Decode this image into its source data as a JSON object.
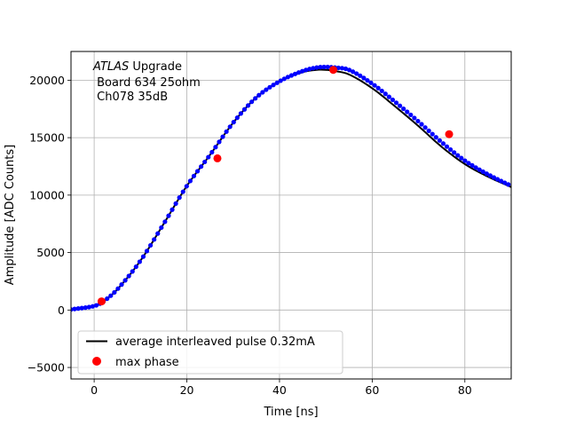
{
  "chart_data": {
    "type": "scatter",
    "title": "",
    "xlabel": "Time [ns]",
    "ylabel": "Amplitude [ADC Counts]",
    "xlim": [
      -5,
      90
    ],
    "ylim": [
      -6000,
      22500
    ],
    "xticks": [
      0,
      20,
      40,
      60,
      80
    ],
    "yticks": [
      -5000,
      0,
      5000,
      10000,
      15000,
      20000
    ],
    "xtick_labels": [
      "0",
      "20",
      "40",
      "60",
      "80"
    ],
    "ytick_labels": [
      "−5000",
      "0",
      "5000",
      "10000",
      "15000",
      "20000"
    ],
    "grid": true,
    "annotation": {
      "italic": "ATLAS",
      "line1_rest": " Upgrade",
      "line2": " Board 634 25ohm",
      "line3": " Ch078 35dB"
    },
    "legend": {
      "placement": "lower-left",
      "entries": [
        "average interleaved pulse 0.32mA",
        "max phase"
      ]
    },
    "pulse_curve": {
      "name": "average interleaved pulse 0.32mA",
      "color": "#000000",
      "x": [
        -5,
        0,
        2,
        5,
        10,
        15,
        20,
        25,
        30,
        35,
        40,
        45,
        48,
        50,
        52,
        55,
        60,
        65,
        70,
        75,
        80,
        85,
        90
      ],
      "y": [
        50,
        350,
        750,
        1800,
        4300,
        7500,
        10800,
        13500,
        16300,
        18500,
        19900,
        20700,
        20900,
        20900,
        20800,
        20500,
        19300,
        17700,
        16000,
        14200,
        12700,
        11600,
        10700
      ]
    },
    "samples": {
      "color": "#0000ff",
      "x": [
        -5,
        0,
        2,
        5,
        10,
        15,
        20,
        25,
        30,
        35,
        40,
        45,
        48,
        50,
        52,
        55,
        60,
        65,
        70,
        75,
        80,
        85,
        90
      ],
      "y": [
        50,
        350,
        750,
        1800,
        4300,
        7500,
        10800,
        13500,
        16300,
        18500,
        19900,
        20800,
        21100,
        21150,
        21100,
        20900,
        19700,
        18100,
        16400,
        14600,
        13000,
        11800,
        10800
      ]
    },
    "max_phase": {
      "name": "max phase",
      "color": "#ff0000",
      "x": [
        1.6,
        26.6,
        51.6,
        76.6
      ],
      "y": [
        750,
        13200,
        20900,
        15300
      ]
    }
  }
}
